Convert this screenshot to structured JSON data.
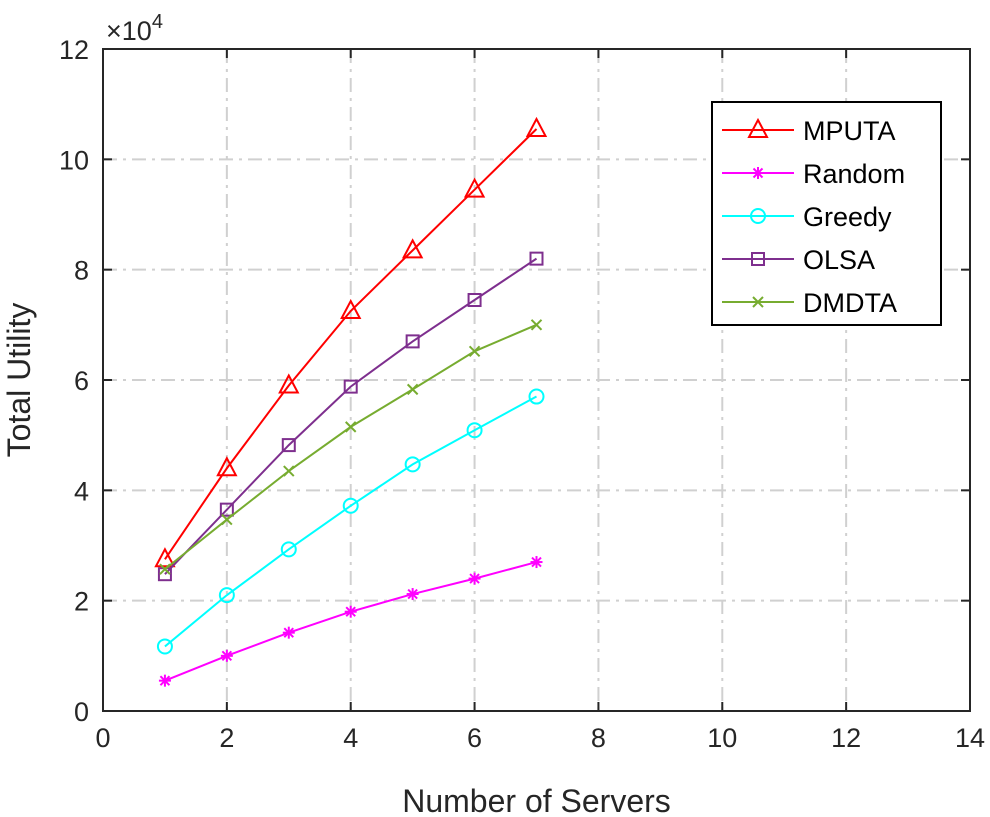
{
  "chart_data": {
    "type": "line",
    "title": "",
    "xlabel": "Number of Servers",
    "ylabel": "Total Utility",
    "exponent_label": "×10",
    "exponent_power": "4",
    "exponent": 4,
    "xlim": [
      0,
      14
    ],
    "ylim": [
      0,
      12
    ],
    "xticks": [
      "0",
      "2",
      "4",
      "6",
      "8",
      "10",
      "12",
      "14"
    ],
    "yticks": [
      "0",
      "2",
      "4",
      "6",
      "8",
      "10",
      "12"
    ],
    "grid": true,
    "legend_position": "top-right",
    "x": [
      1,
      2,
      3,
      4,
      5,
      6,
      7
    ],
    "series": [
      {
        "name": "MPUTA",
        "color": "#ff0000",
        "marker": "triangle",
        "values": [
          2.75,
          4.4,
          5.9,
          7.25,
          8.35,
          9.45,
          10.55
        ]
      },
      {
        "name": "Random",
        "color": "#ff00ff",
        "marker": "asterisk",
        "values": [
          0.55,
          1.0,
          1.42,
          1.8,
          2.12,
          2.4,
          2.7
        ]
      },
      {
        "name": "Greedy",
        "color": "#00ffff",
        "marker": "circle",
        "values": [
          1.17,
          2.1,
          2.93,
          3.72,
          4.47,
          5.09,
          5.7
        ]
      },
      {
        "name": "OLSA",
        "color": "#7e2f8e",
        "marker": "square",
        "values": [
          2.48,
          3.65,
          4.82,
          5.88,
          6.7,
          7.45,
          8.2
        ]
      },
      {
        "name": "DMDTA",
        "color": "#77ac30",
        "marker": "x",
        "values": [
          2.57,
          3.47,
          4.35,
          5.15,
          5.83,
          6.52,
          7.0
        ]
      }
    ]
  }
}
